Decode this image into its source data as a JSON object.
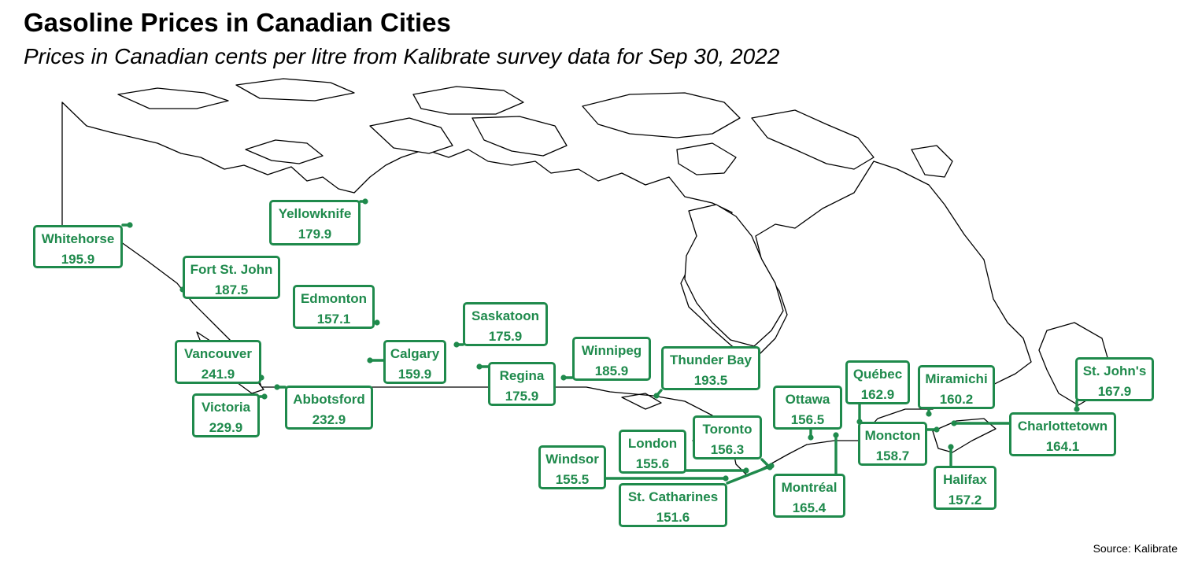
{
  "title": "Gasoline Prices in Canadian Cities",
  "subtitle": "Prices in Canadian cents per litre from Kalibrate survey data for Sep 30, 2022",
  "source": "Source: Kalibrate",
  "colors": {
    "label": "#1f8a4c",
    "coastline": "#000000",
    "background": "#ffffff"
  },
  "cities": [
    {
      "id": "whitehorse",
      "city": "Whitehorse",
      "price": "195.9",
      "lon": -135.06,
      "lat": 60.72
    },
    {
      "id": "yellowknife",
      "city": "Yellowknife",
      "price": "179.9",
      "lon": -114.37,
      "lat": 62.45
    },
    {
      "id": "fort-st-john",
      "city": "Fort St. John",
      "price": "187.5",
      "lon": -120.85,
      "lat": 56.25
    },
    {
      "id": "edmonton",
      "city": "Edmonton",
      "price": "157.1",
      "lon": -113.49,
      "lat": 53.55
    },
    {
      "id": "vancouver",
      "city": "Vancouver",
      "price": "241.9",
      "lon": -123.12,
      "lat": 49.28
    },
    {
      "id": "victoria",
      "city": "Victoria",
      "price": "229.9",
      "lon": -123.37,
      "lat": 48.43
    },
    {
      "id": "abbotsford",
      "city": "Abbotsford",
      "price": "232.9",
      "lon": -122.25,
      "lat": 49.05
    },
    {
      "id": "calgary",
      "city": "Calgary",
      "price": "159.9",
      "lon": -114.07,
      "lat": 51.05
    },
    {
      "id": "saskatoon",
      "city": "Saskatoon",
      "price": "175.9",
      "lon": -106.67,
      "lat": 52.13
    },
    {
      "id": "regina",
      "city": "Regina",
      "price": "175.9",
      "lon": -104.61,
      "lat": 50.45
    },
    {
      "id": "winnipeg",
      "city": "Winnipeg",
      "price": "185.9",
      "lon": -97.14,
      "lat": 49.9
    },
    {
      "id": "thunder-bay",
      "city": "Thunder Bay",
      "price": "193.5",
      "lon": -89.25,
      "lat": 48.38
    },
    {
      "id": "ottawa",
      "city": "Ottawa",
      "price": "156.5",
      "lon": -75.7,
      "lat": 45.42
    },
    {
      "id": "toronto",
      "city": "Toronto",
      "price": "156.3",
      "lon": -79.38,
      "lat": 43.65
    },
    {
      "id": "london",
      "city": "London",
      "price": "155.6",
      "lon": -81.25,
      "lat": 42.98
    },
    {
      "id": "windsor",
      "city": "Windsor",
      "price": "155.5",
      "lon": -83.03,
      "lat": 42.31
    },
    {
      "id": "st-catharines",
      "city": "St. Catharines",
      "price": "151.6",
      "lon": -79.24,
      "lat": 43.16
    },
    {
      "id": "montreal",
      "city": "Montréal",
      "price": "165.4",
      "lon": -73.57,
      "lat": 45.5
    },
    {
      "id": "quebec",
      "city": "Québec",
      "price": "162.9",
      "lon": -71.21,
      "lat": 46.81
    },
    {
      "id": "miramichi",
      "city": "Miramichi",
      "price": "160.2",
      "lon": -65.47,
      "lat": 47.0
    },
    {
      "id": "moncton",
      "city": "Moncton",
      "price": "158.7",
      "lon": -64.77,
      "lat": 46.09
    },
    {
      "id": "halifax",
      "city": "Halifax",
      "price": "157.2",
      "lon": -63.57,
      "lat": 44.65
    },
    {
      "id": "charlottetown",
      "city": "Charlottetown",
      "price": "164.1",
      "lon": -63.13,
      "lat": 46.24
    },
    {
      "id": "st-johns",
      "city": "St. John's",
      "price": "167.9",
      "lon": -52.71,
      "lat": 47.56
    }
  ]
}
